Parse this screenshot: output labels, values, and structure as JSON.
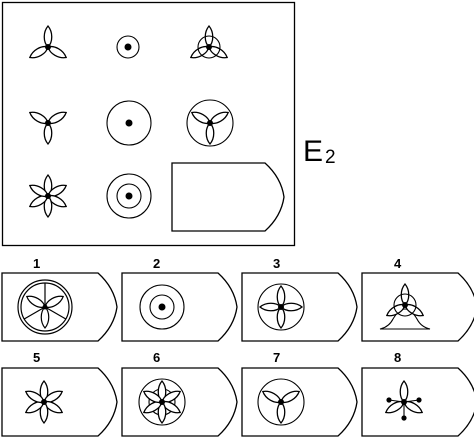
{
  "title": {
    "letter": "E",
    "subscript": "2"
  },
  "matrix": {
    "cells": [
      {
        "row": 1,
        "col": 1,
        "figure": "three-petal-flower-up"
      },
      {
        "row": 1,
        "col": 2,
        "figure": "dot-in-small-circle"
      },
      {
        "row": 1,
        "col": 3,
        "figure": "three-petal-flower-up-in-small-circle"
      },
      {
        "row": 2,
        "col": 1,
        "figure": "three-petal-flower-down"
      },
      {
        "row": 2,
        "col": 2,
        "figure": "dot-in-large-circle"
      },
      {
        "row": 2,
        "col": 3,
        "figure": "three-petal-flower-down-in-large-circle"
      },
      {
        "row": 3,
        "col": 1,
        "figure": "six-petal-flower"
      },
      {
        "row": 3,
        "col": 2,
        "figure": "dot-in-double-circle"
      },
      {
        "row": 3,
        "col": 3,
        "figure": "empty-answer-slot"
      }
    ]
  },
  "options": [
    {
      "number": "1",
      "figure": "wheel-with-three-petals-in-double-circle"
    },
    {
      "number": "2",
      "figure": "dot-in-double-circle"
    },
    {
      "number": "3",
      "figure": "four-petal-flower-in-large-circle"
    },
    {
      "number": "4",
      "figure": "three-petal-flower-up-in-small-circle-with-base"
    },
    {
      "number": "5",
      "figure": "six-petal-flower"
    },
    {
      "number": "6",
      "figure": "six-petal-flower-in-double-circle"
    },
    {
      "number": "7",
      "figure": "three-petal-flower-down-in-large-circle"
    },
    {
      "number": "8",
      "figure": "three-petal-flower-with-dotted-stems"
    }
  ]
}
